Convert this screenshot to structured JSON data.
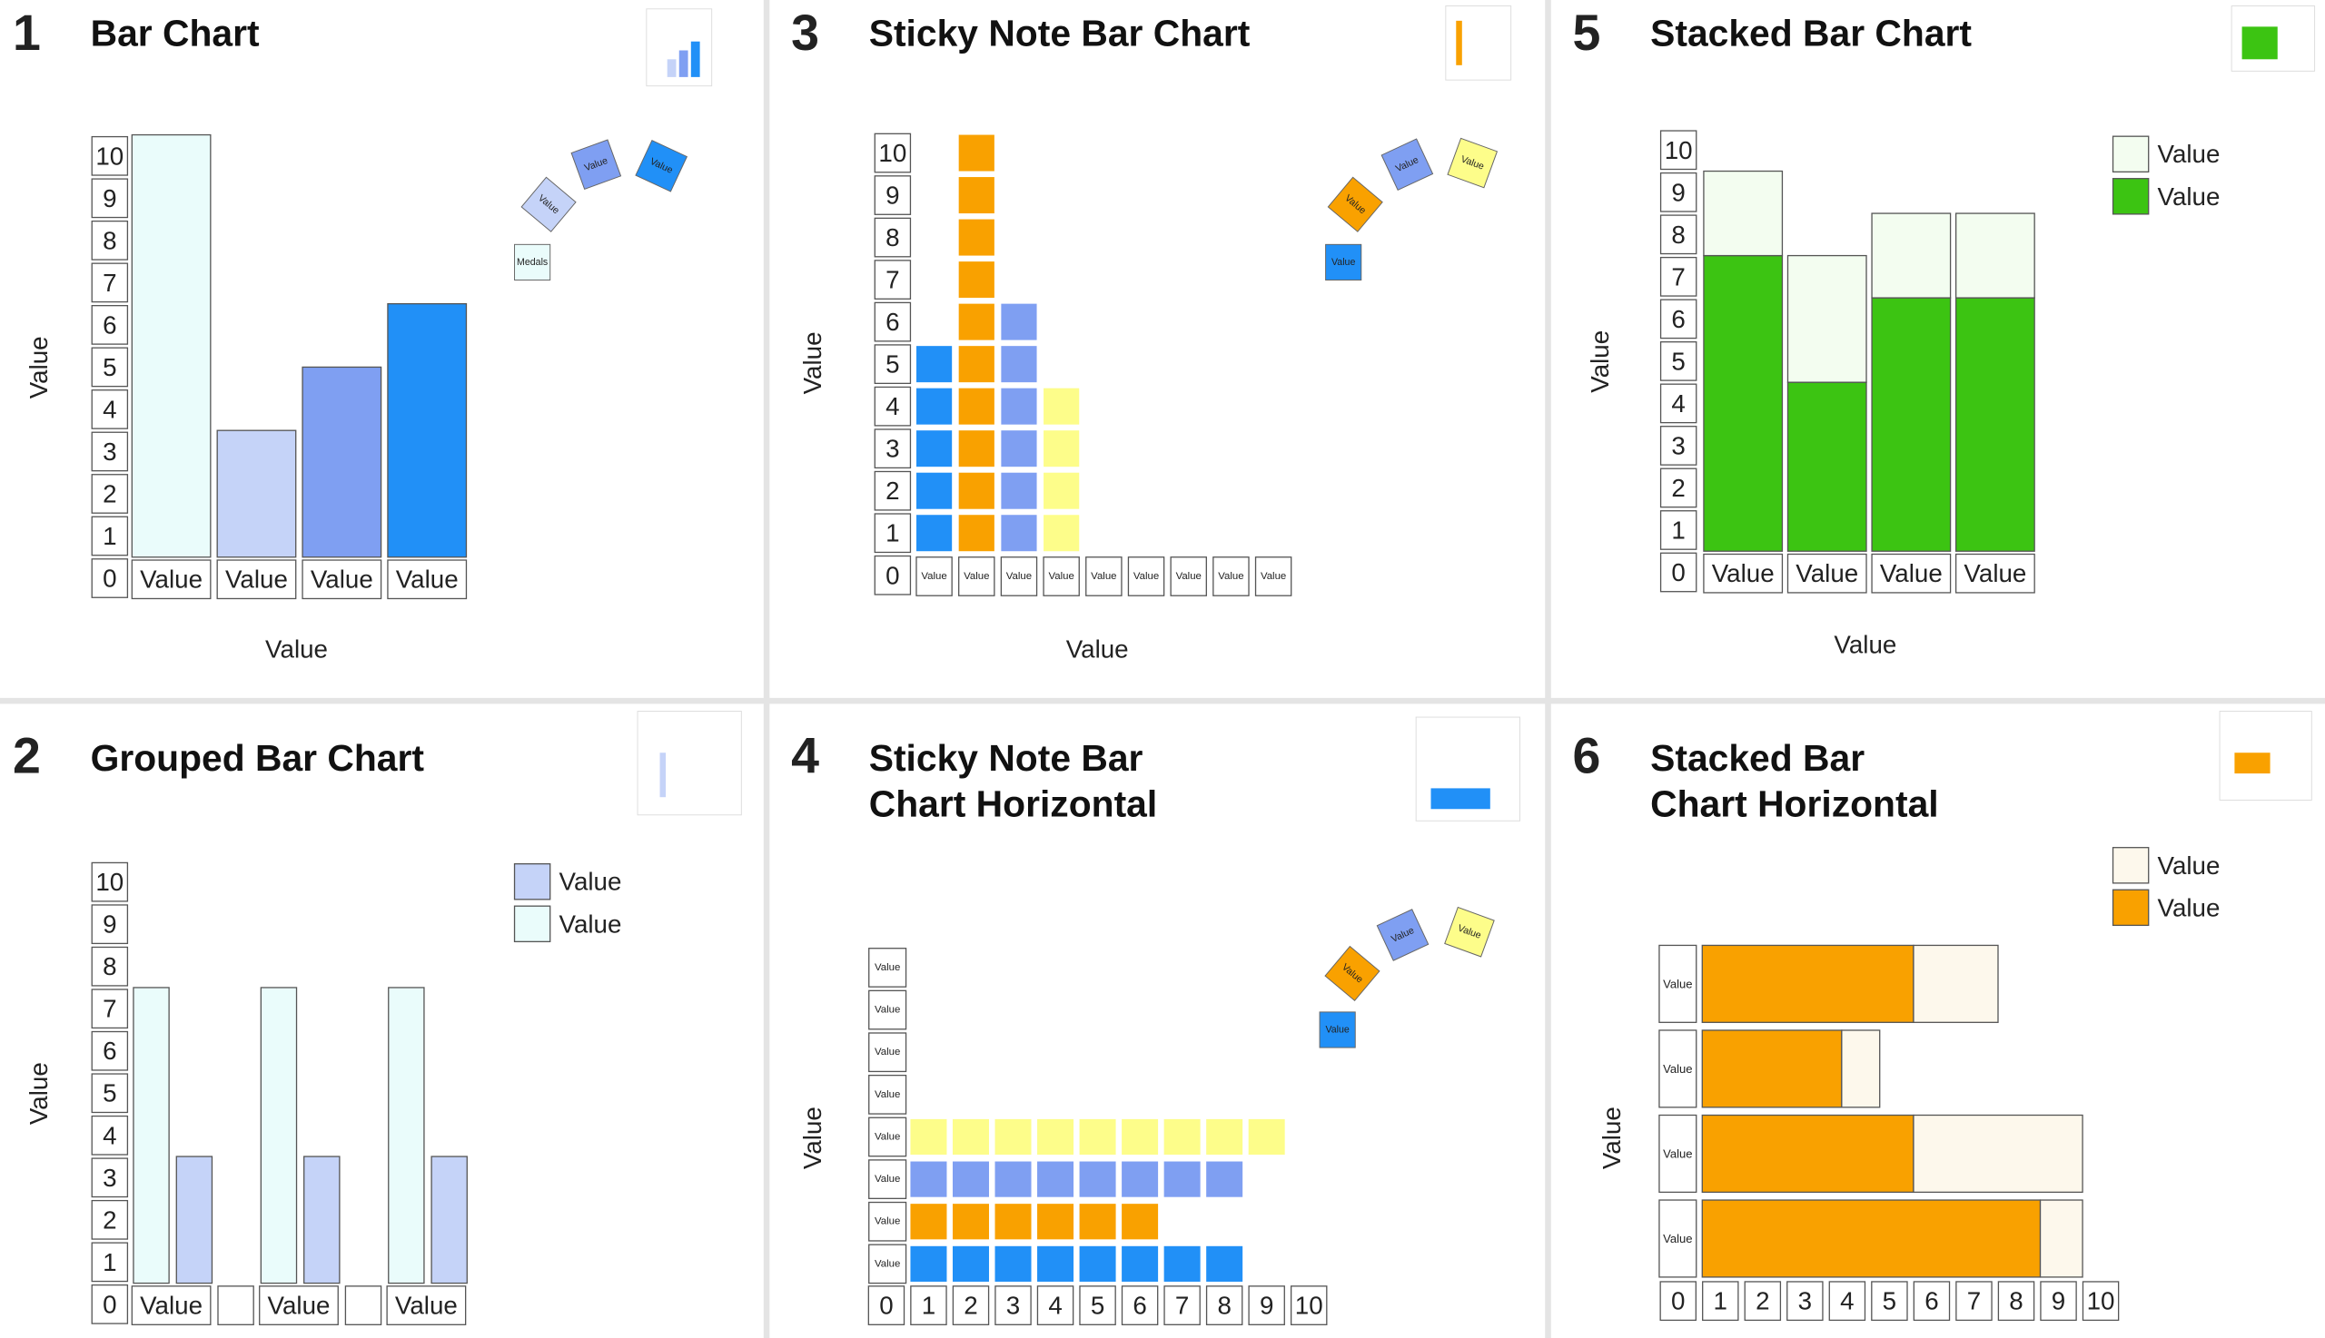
{
  "chart_data": [
    {
      "type": "bar",
      "number": "1",
      "title": "Bar Chart",
      "y_label": "Value",
      "x_label": "Value",
      "categories": [
        "Value",
        "Value",
        "Value",
        "Value"
      ],
      "values": [
        10,
        3,
        4.5,
        6
      ],
      "colors": [
        "#eafcfb",
        "#c5d3f8",
        "#7f9ff2",
        "#2190f7"
      ],
      "ylim": [
        0,
        10
      ],
      "yticks": [
        0,
        1,
        2,
        3,
        4,
        5,
        6,
        7,
        8,
        9,
        10
      ],
      "notes": [
        {
          "text": "Value",
          "color": "#c5d3f8"
        },
        {
          "text": "Value",
          "color": "#7f9ff2"
        },
        {
          "text": "Value",
          "color": "#2190f7"
        },
        {
          "text": "Medals",
          "color": "#eafcfb"
        }
      ]
    },
    {
      "type": "grouped_bar",
      "number": "2",
      "title": "Grouped Bar Chart",
      "y_label": "Value",
      "categories": [
        "Value",
        "Value",
        "Value"
      ],
      "series": [
        {
          "name": "Value",
          "color": "#eafcfb",
          "values": [
            7,
            7,
            7
          ]
        },
        {
          "name": "Value",
          "color": "#c5d3f8",
          "values": [
            3,
            3,
            3
          ]
        }
      ],
      "ylim": [
        0,
        10
      ],
      "yticks": [
        0,
        1,
        2,
        3,
        4,
        5,
        6,
        7,
        8,
        9,
        10
      ],
      "legend": "top-right"
    },
    {
      "type": "sticky_bar",
      "number": "3",
      "title": "Sticky Note Bar Chart",
      "y_label": "Value",
      "x_label": "Value",
      "categories": [
        "Value",
        "Value",
        "Value",
        "Value",
        "Value",
        "Value",
        "Value",
        "Value",
        "Value"
      ],
      "values": [
        5,
        10,
        6,
        4,
        0,
        0,
        0,
        0,
        0
      ],
      "colors": [
        "#2190f7",
        "#f9a100",
        "#7f9ff2",
        "#fdfd8a",
        null,
        null,
        null,
        null,
        null
      ],
      "ylim": [
        0,
        10
      ],
      "yticks": [
        0,
        1,
        2,
        3,
        4,
        5,
        6,
        7,
        8,
        9,
        10
      ],
      "notes": [
        {
          "text": "Value",
          "color": "#f9a100"
        },
        {
          "text": "Value",
          "color": "#7f9ff2"
        },
        {
          "text": "Value",
          "color": "#fdfd8a"
        },
        {
          "text": "Value",
          "color": "#2190f7"
        }
      ]
    },
    {
      "type": "sticky_barh",
      "number": "4",
      "title": "Sticky Note Bar Chart Horizontal",
      "y_label": "Value",
      "categories": [
        "Value",
        "Value",
        "Value",
        "Value",
        "Value",
        "Value",
        "Value",
        "Value"
      ],
      "values": [
        8,
        6,
        8,
        9,
        0,
        0,
        0,
        0
      ],
      "colors": [
        "#2190f7",
        "#f9a100",
        "#7f9ff2",
        "#fdfd8a",
        null,
        null,
        null,
        null
      ],
      "xlim": [
        0,
        10
      ],
      "xticks": [
        0,
        1,
        2,
        3,
        4,
        5,
        6,
        7,
        8,
        9,
        10
      ],
      "notes": [
        {
          "text": "Value",
          "color": "#f9a100"
        },
        {
          "text": "Value",
          "color": "#7f9ff2"
        },
        {
          "text": "Value",
          "color": "#fdfd8a"
        },
        {
          "text": "Value",
          "color": "#2190f7"
        }
      ]
    },
    {
      "type": "stacked_bar",
      "number": "5",
      "title": "Stacked Bar Chart",
      "y_label": "Value",
      "x_label": "Value",
      "categories": [
        "Value",
        "Value",
        "Value",
        "Value"
      ],
      "series": [
        {
          "name": "Value",
          "color": "#3cc412",
          "values": [
            7,
            4,
            6,
            6
          ]
        },
        {
          "name": "Value",
          "color": "#f3fdf0",
          "values": [
            2,
            3,
            2,
            2
          ]
        }
      ],
      "ylim": [
        0,
        10
      ],
      "yticks": [
        0,
        1,
        2,
        3,
        4,
        5,
        6,
        7,
        8,
        9,
        10
      ],
      "legend": "top-right"
    },
    {
      "type": "stacked_barh",
      "number": "6",
      "title": "Stacked Bar Chart Horizontal",
      "y_label": "Value",
      "categories": [
        "Value",
        "Value",
        "Value",
        "Value"
      ],
      "series": [
        {
          "name": "Value",
          "color": "#f9a100",
          "values": [
            5,
            3.3,
            5,
            8
          ]
        },
        {
          "name": "Value",
          "color": "#fdf8ec",
          "values": [
            2,
            0.9,
            4,
            1
          ]
        }
      ],
      "xlim": [
        0,
        10
      ],
      "xticks": [
        0,
        1,
        2,
        3,
        4,
        5,
        6,
        7,
        8,
        9,
        10
      ],
      "legend": "top-right"
    }
  ]
}
